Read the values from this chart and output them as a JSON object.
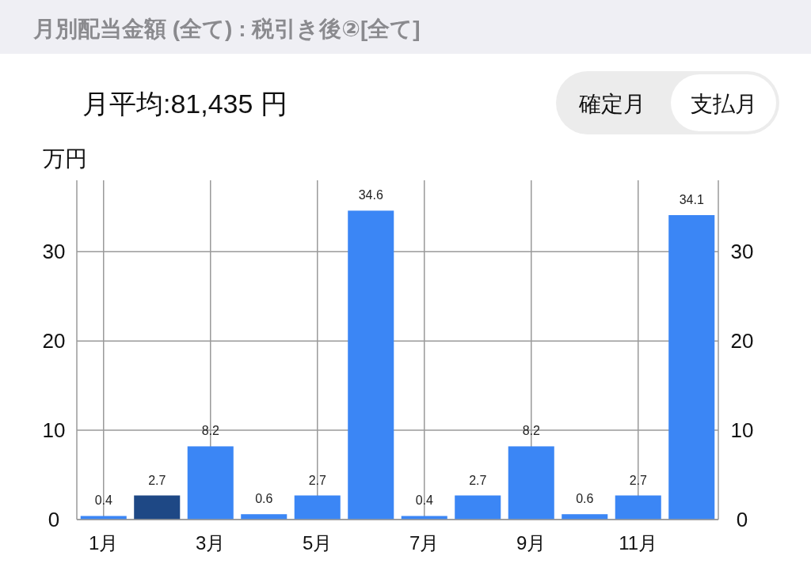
{
  "chart_data": {
    "type": "bar",
    "title": "月別配当金額 (全て) : 税引き後②[全て]",
    "subtitle": "月平均:81,435 円",
    "annotations": [
      "確定月",
      "支払月"
    ],
    "ylabel": "万円",
    "categories": [
      "1月",
      null,
      "3月",
      null,
      "5月",
      null,
      "7月",
      null,
      "9月",
      null,
      "11月",
      null
    ],
    "values": [
      0.4,
      2.7,
      8.2,
      0.6,
      2.7,
      34.6,
      0.4,
      2.7,
      8.2,
      0.6,
      2.7,
      34.1
    ],
    "colors": [
      "#3b86f5",
      "#1e4885",
      "#3b86f5",
      "#3b86f5",
      "#3b86f5",
      "#3b86f5",
      "#3b86f5",
      "#3b86f5",
      "#3b86f5",
      "#3b86f5",
      "#3b86f5",
      "#3b86f5"
    ],
    "ylim": [
      0,
      38
    ],
    "yticks": [
      0,
      10,
      20,
      30
    ],
    "y2lim": [
      0,
      38
    ],
    "y2ticks": [
      0,
      10,
      20,
      30
    ],
    "grid": true,
    "data_labels": true
  }
}
